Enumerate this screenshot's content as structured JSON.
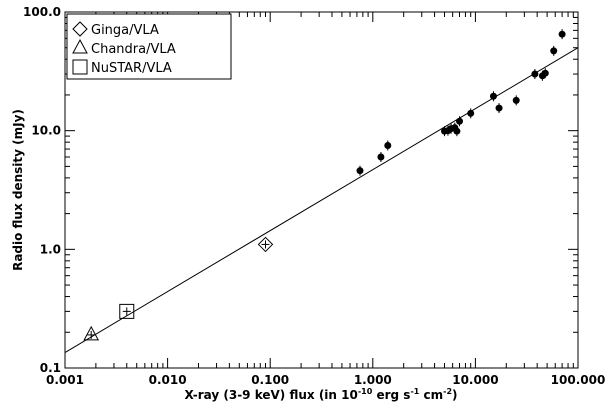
{
  "chart_data": {
    "type": "scatter",
    "xscale": "log",
    "yscale": "log",
    "xlim": [
      0.001,
      100
    ],
    "ylim": [
      0.1,
      100
    ],
    "xlabel": "X-ray (3-9 keV) flux (in 10^-10 erg s^-1 cm^-2)",
    "xlabel_parts": {
      "text1": "X-ray (3-9 keV) flux (in 10",
      "exp1": "-10",
      "text2": " erg s",
      "exp2": "-1",
      "text3": " cm",
      "exp3": "-2",
      "text4": ")"
    },
    "ylabel": "Radio flux density (mJy)",
    "xticks": [
      {
        "value": 0.001,
        "label": "0.001"
      },
      {
        "value": 0.01,
        "label": "0.010"
      },
      {
        "value": 0.1,
        "label": "0.100"
      },
      {
        "value": 1,
        "label": "1.000"
      },
      {
        "value": 10,
        "label": "10.000"
      },
      {
        "value": 100,
        "label": "100.000"
      }
    ],
    "yticks": [
      {
        "value": 0.1,
        "label": "0.1"
      },
      {
        "value": 1,
        "label": "1.0"
      },
      {
        "value": 10,
        "label": "10.0"
      },
      {
        "value": 100,
        "label": "100.0"
      }
    ],
    "legend_position": "top-left",
    "series": [
      {
        "name": "Ginga/VLA",
        "marker": "diamond",
        "points": [
          {
            "x": 0.09,
            "y": 1.1
          }
        ]
      },
      {
        "name": "Chandra/VLA",
        "marker": "triangle",
        "points": [
          {
            "x": 0.0018,
            "y": 0.19
          }
        ]
      },
      {
        "name": "NuSTAR/VLA",
        "marker": "square",
        "points": [
          {
            "x": 0.004,
            "y": 0.3
          }
        ]
      },
      {
        "marker": "filled-circle",
        "points": [
          {
            "x": 0.75,
            "y": 4.6
          },
          {
            "x": 1.2,
            "y": 6.0
          },
          {
            "x": 1.4,
            "y": 7.5
          },
          {
            "x": 5.0,
            "y": 9.9
          },
          {
            "x": 5.4,
            "y": 10.0
          },
          {
            "x": 5.8,
            "y": 10.4
          },
          {
            "x": 6.3,
            "y": 10.6
          },
          {
            "x": 6.6,
            "y": 9.9
          },
          {
            "x": 7.0,
            "y": 12.0
          },
          {
            "x": 9.0,
            "y": 14.0
          },
          {
            "x": 15.0,
            "y": 19.5
          },
          {
            "x": 17.0,
            "y": 15.5
          },
          {
            "x": 25.0,
            "y": 18.0
          },
          {
            "x": 38.0,
            "y": 30.0
          },
          {
            "x": 45.0,
            "y": 29.0
          },
          {
            "x": 48.0,
            "y": 30.5
          },
          {
            "x": 58.0,
            "y": 47.0
          },
          {
            "x": 70.0,
            "y": 65.0
          }
        ]
      }
    ],
    "fit_line": {
      "x": [
        0.001,
        100
      ],
      "y": [
        0.135,
        50
      ]
    }
  }
}
